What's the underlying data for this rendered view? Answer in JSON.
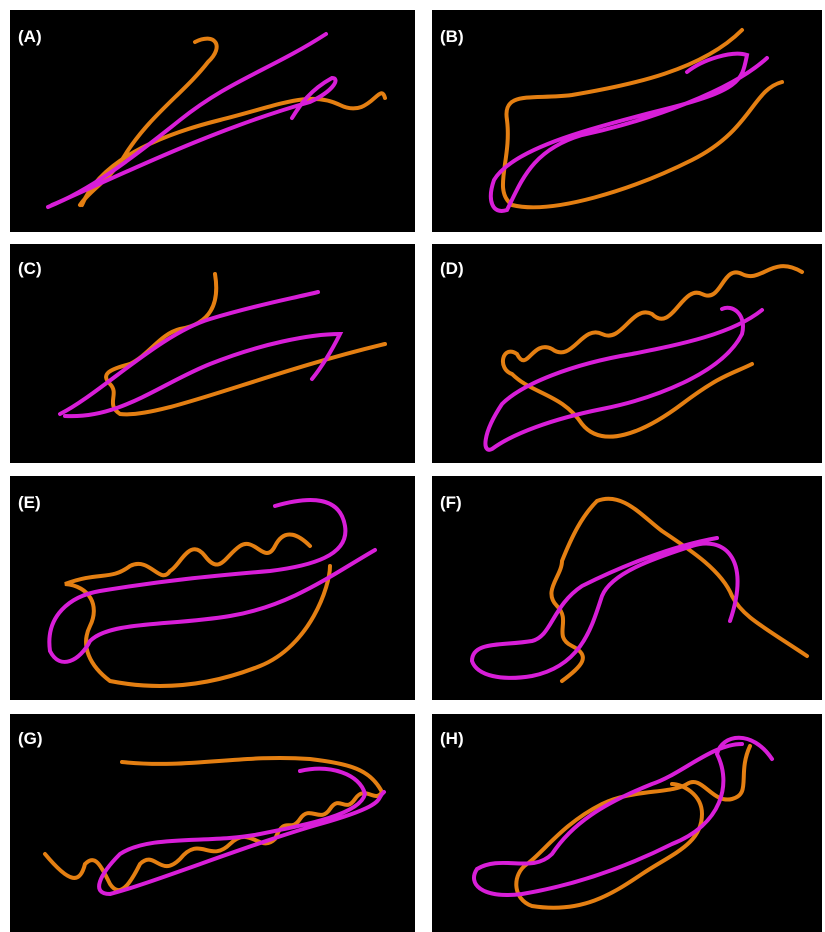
{
  "panels": [
    {
      "label": "(A)"
    },
    {
      "label": "(B)"
    },
    {
      "label": "(C)"
    },
    {
      "label": "(D)"
    },
    {
      "label": "(E)"
    },
    {
      "label": "(F)"
    },
    {
      "label": "(G)"
    },
    {
      "label": "(H)"
    }
  ]
}
